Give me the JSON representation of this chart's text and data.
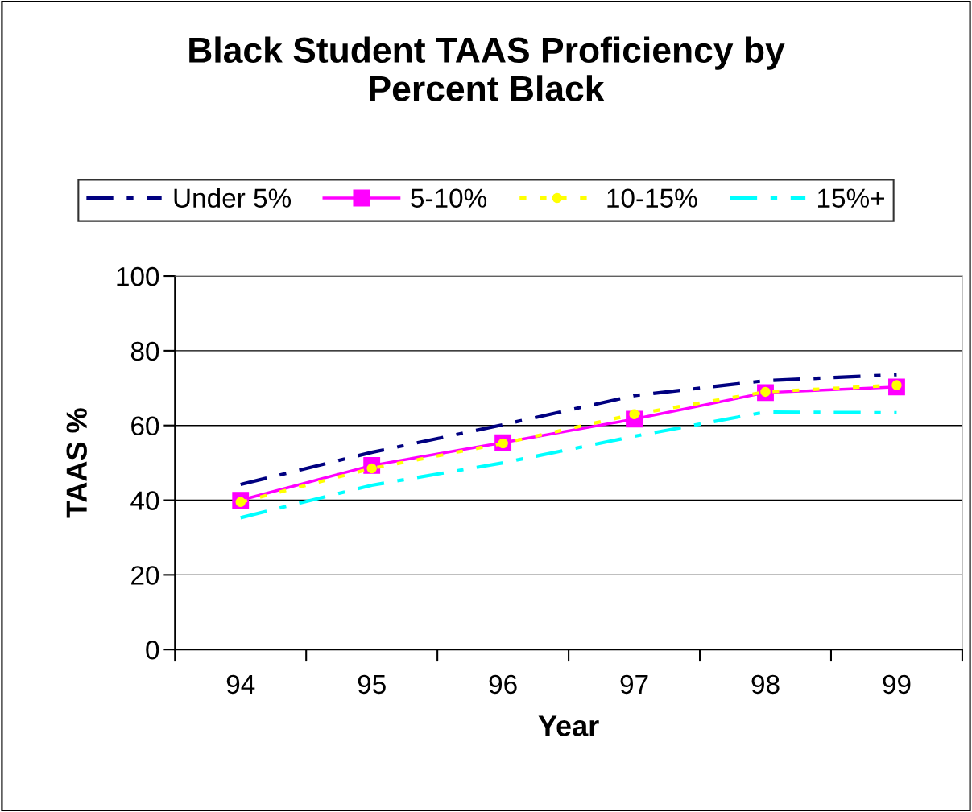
{
  "chart_data": {
    "type": "line",
    "title": "Black Student TAAS Proficiency by\nPercent Black",
    "xlabel": "Year",
    "ylabel": "TAAS %",
    "categories": [
      "94",
      "95",
      "96",
      "97",
      "98",
      "99"
    ],
    "series": [
      {
        "name": "Under 5%",
        "color": "#000080",
        "values": [
          44.2,
          52.8,
          60.2,
          68,
          72,
          73.6
        ],
        "line_style": "dashdot",
        "marker": "none"
      },
      {
        "name": "5-10%",
        "color": "#ff00ff",
        "values": [
          40,
          49.3,
          55.4,
          61.7,
          68.8,
          70.3
        ],
        "line_style": "solid",
        "marker": "square"
      },
      {
        "name": "10-15%",
        "color": "#ffff00",
        "values": [
          39.5,
          48.5,
          55.2,
          63,
          69,
          70.8
        ],
        "line_style": "dotted",
        "marker": "circle"
      },
      {
        "name": "15%+",
        "color": "#00ffff",
        "values": [
          35.3,
          44,
          50,
          57.1,
          63.6,
          63.4
        ],
        "line_style": "dashdot",
        "marker": "none"
      }
    ],
    "ylim": [
      0,
      100
    ],
    "yticks": [
      0,
      20,
      40,
      60,
      80,
      100
    ],
    "grid": "y",
    "legend": "top"
  }
}
